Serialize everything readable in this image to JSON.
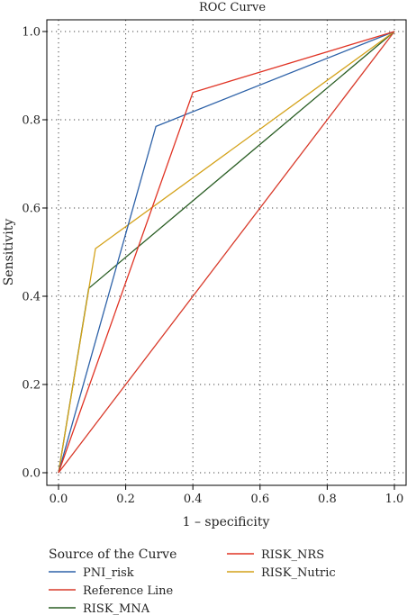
{
  "chart_data": {
    "type": "line",
    "title": "ROC Curve",
    "xlabel": "1 – specificity",
    "ylabel": "Sensitivity",
    "xlim": [
      0,
      1
    ],
    "ylim": [
      0,
      1
    ],
    "xticks": [
      "0.0",
      "0.2",
      "0.4",
      "0.6",
      "0.8",
      "1.0"
    ],
    "yticks": [
      "0.0",
      "0.2",
      "0.4",
      "0.6",
      "0.8",
      "1.0"
    ],
    "grid": true,
    "legend_position": "bottom",
    "legend_title": "Source of the Curve",
    "series": [
      {
        "name": "PNI_risk",
        "color": "#2e62a8",
        "points": [
          [
            0,
            0
          ],
          [
            0.29,
            0.785
          ],
          [
            1,
            1
          ]
        ]
      },
      {
        "name": "Reference Line",
        "color": "#d83a2a",
        "points": [
          [
            0,
            0
          ],
          [
            1,
            1
          ]
        ]
      },
      {
        "name": "RISK_MNA",
        "color": "#2a5e24",
        "points": [
          [
            0,
            0
          ],
          [
            0.09,
            0.418
          ],
          [
            1,
            1
          ]
        ]
      },
      {
        "name": "RISK_NRS",
        "color": "#e03324",
        "points": [
          [
            0,
            0
          ],
          [
            0.4,
            0.862
          ],
          [
            1,
            1
          ]
        ]
      },
      {
        "name": "RISK_Nutric",
        "color": "#d4a21a",
        "points": [
          [
            0,
            0
          ],
          [
            0.11,
            0.508
          ],
          [
            1,
            1
          ]
        ]
      }
    ]
  }
}
